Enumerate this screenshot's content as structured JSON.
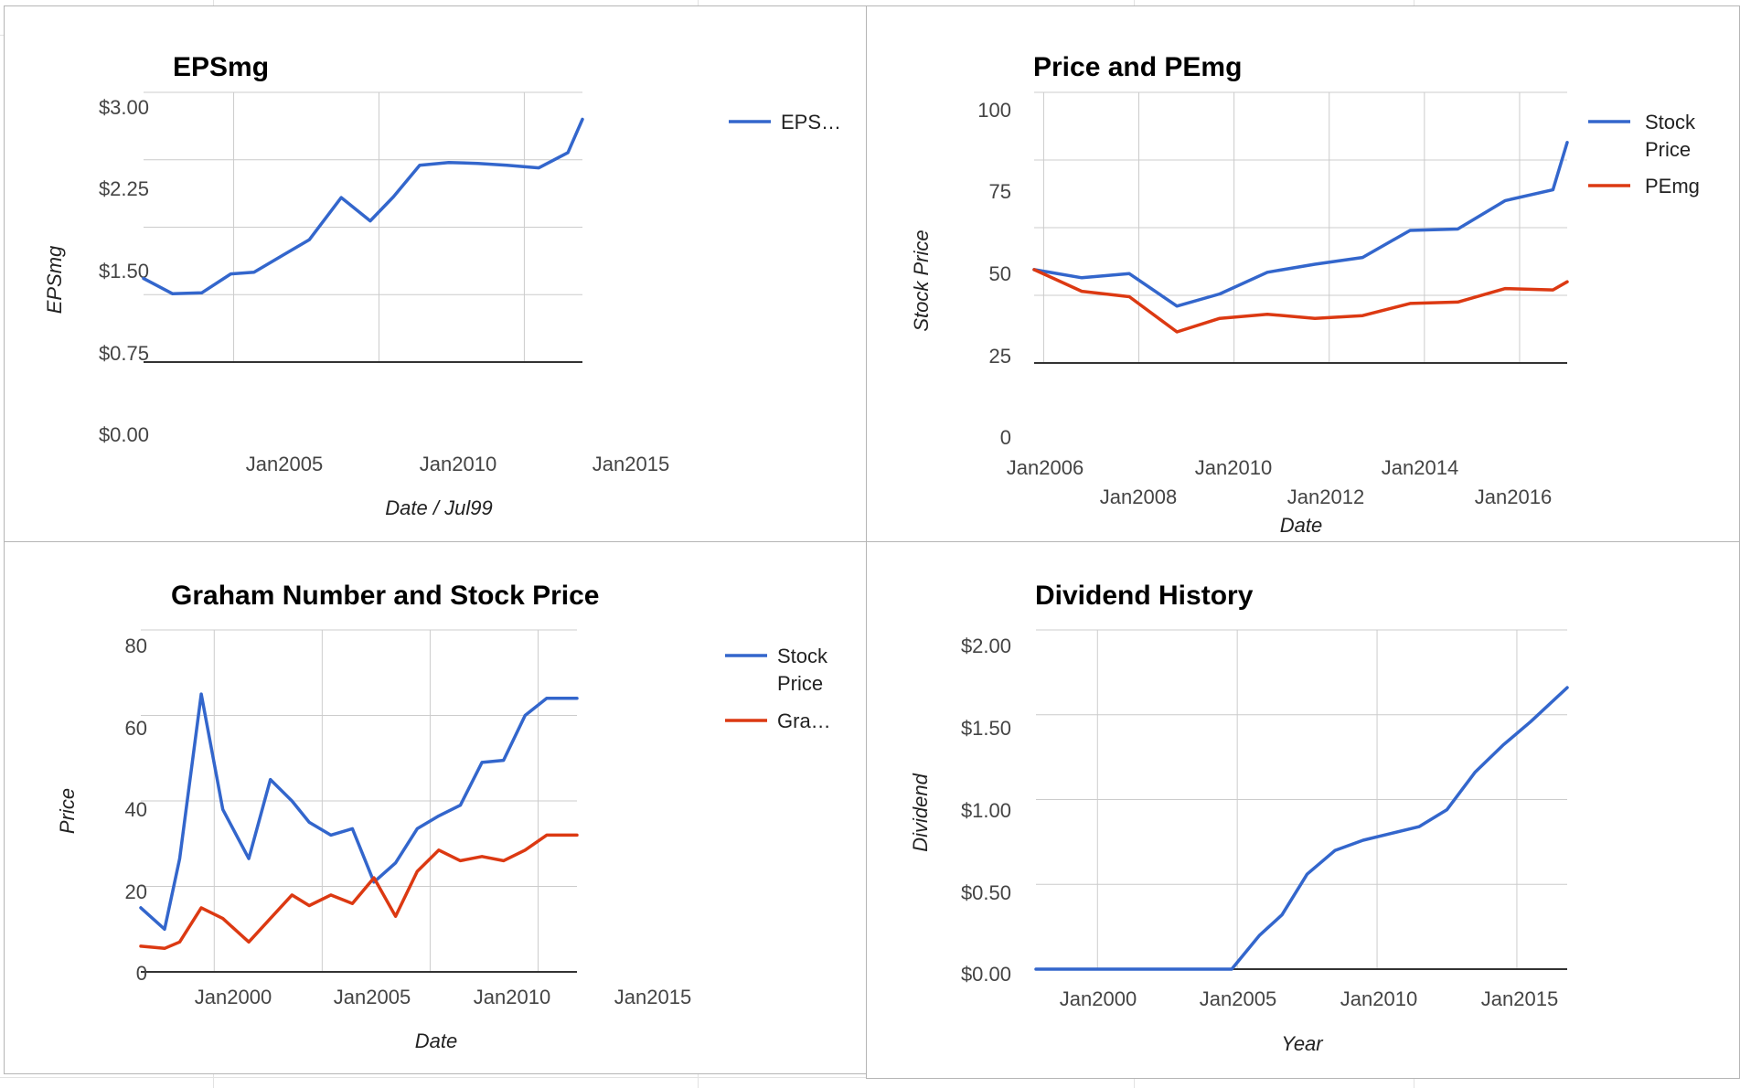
{
  "colors": {
    "blue": "#3366cc",
    "red": "#dc3912"
  },
  "chart_data": [
    {
      "id": "epsmg",
      "type": "line",
      "title": "EPSmg",
      "xlabel": "Date / Jul99",
      "ylabel": "EPSmg",
      "y_ticks": [
        "$0.00",
        "$0.75",
        "$1.50",
        "$2.25",
        "$3.00"
      ],
      "x_tick_labels": [
        "Jan2005",
        "Jan2010",
        "Jan2015"
      ],
      "legend": [
        "EPS…"
      ],
      "legend_position": "right",
      "grid": true,
      "ylim": [
        0,
        3
      ],
      "xlim": [
        2001.9,
        2017.0
      ],
      "x_ticks": [
        2005,
        2010,
        2015
      ],
      "series": [
        {
          "name": "EPS…",
          "color": "#3366cc",
          "x": [
            2001.9,
            2002.9,
            2003.9,
            2004.9,
            2005.7,
            2006.7,
            2007.6,
            2008.7,
            2009.7,
            2010.5,
            2011.4,
            2012.4,
            2013.4,
            2014.4,
            2015.5,
            2016.5,
            2017.0
          ],
          "y": [
            0.93,
            0.76,
            0.77,
            0.98,
            1.0,
            1.19,
            1.36,
            1.83,
            1.57,
            1.84,
            2.19,
            2.22,
            2.21,
            2.19,
            2.16,
            2.33,
            2.7
          ]
        }
      ]
    },
    {
      "id": "price-pemg",
      "type": "line",
      "title": "Price and PEmg",
      "xlabel": "Date",
      "ylabel": "Stock Price",
      "y_ticks": [
        "0",
        "25",
        "50",
        "75",
        "100"
      ],
      "x_tick_labels": [
        "Jan2006",
        "Jan2008",
        "Jan2010",
        "Jan2012",
        "Jan2014",
        "Jan2016"
      ],
      "legend": [
        "Stock Price",
        "PEmg"
      ],
      "legend_position": "right",
      "grid": true,
      "ylim": [
        0,
        100
      ],
      "xlim": [
        2005.8,
        2017.0
      ],
      "x_ticks": [
        2006,
        2008,
        2010,
        2012,
        2014,
        2016
      ],
      "series": [
        {
          "name": "Stock Price",
          "color": "#3366cc",
          "x": [
            2005.8,
            2006.8,
            2007.8,
            2008.8,
            2009.7,
            2010.7,
            2011.7,
            2012.7,
            2013.7,
            2014.7,
            2015.7,
            2016.7,
            2017.0
          ],
          "y": [
            34.5,
            31.5,
            33.0,
            21.0,
            25.5,
            33.5,
            36.5,
            39.0,
            49.0,
            49.5,
            60.0,
            64.0,
            81.5
          ]
        },
        {
          "name": "PEmg",
          "color": "#dc3912",
          "x": [
            2005.8,
            2006.8,
            2007.8,
            2008.8,
            2009.7,
            2010.7,
            2011.7,
            2012.7,
            2013.7,
            2014.7,
            2015.7,
            2016.7,
            2017.0
          ],
          "y": [
            34.5,
            26.5,
            24.5,
            11.5,
            16.5,
            18.0,
            16.5,
            17.5,
            22.0,
            22.5,
            27.5,
            27.0,
            30.0
          ]
        }
      ]
    },
    {
      "id": "graham",
      "type": "line",
      "title": "Graham Number and Stock Price",
      "xlabel": "Date",
      "ylabel": "Price",
      "y_ticks": [
        "0",
        "20",
        "40",
        "60",
        "80"
      ],
      "x_tick_labels": [
        "Jan2000",
        "Jan2005",
        "Jan2010",
        "Jan2015"
      ],
      "legend": [
        "Stock Price",
        "Gra…"
      ],
      "legend_position": "right",
      "grid": true,
      "ylim": [
        0,
        80
      ],
      "xlim": [
        1996.6,
        2016.8
      ],
      "x_ticks": [
        2000,
        2005,
        2010,
        2015
      ],
      "series": [
        {
          "name": "Stock Price",
          "color": "#3366cc",
          "x": [
            1996.6,
            1997.7,
            1998.4,
            1999.4,
            2000.4,
            2001.6,
            2002.6,
            2003.6,
            2004.4,
            2005.4,
            2006.4,
            2007.4,
            2008.4,
            2009.4,
            2010.4,
            2011.4,
            2012.4,
            2013.4,
            2014.4,
            2015.4,
            2016.8
          ],
          "y": [
            15,
            10,
            26.5,
            65,
            38,
            26.5,
            45,
            40,
            35,
            32,
            33.5,
            21,
            25.5,
            33.5,
            36.5,
            39,
            49,
            49.5,
            60,
            64,
            64
          ]
        },
        {
          "name": "Gra…",
          "color": "#dc3912",
          "x": [
            1996.6,
            1997.7,
            1998.4,
            1999.4,
            2000.4,
            2001.6,
            2002.6,
            2003.6,
            2004.4,
            2005.4,
            2006.4,
            2007.4,
            2008.4,
            2009.4,
            2010.4,
            2011.4,
            2012.4,
            2013.4,
            2014.4,
            2015.4,
            2016.8
          ],
          "y": [
            6,
            5.5,
            7,
            15,
            12.5,
            7,
            12.5,
            18,
            15.5,
            18,
            16,
            22,
            13,
            23.5,
            28.5,
            26,
            27,
            26,
            28.5,
            32,
            32
          ]
        }
      ]
    },
    {
      "id": "dividend",
      "type": "line",
      "title": "Dividend History",
      "xlabel": "Year",
      "ylabel": "Dividend",
      "y_ticks": [
        "$0.00",
        "$0.50",
        "$1.00",
        "$1.50",
        "$2.00"
      ],
      "x_tick_labels": [
        "Jan2000",
        "Jan2005",
        "Jan2010",
        "Jan2015"
      ],
      "legend": [],
      "grid": true,
      "ylim": [
        0,
        2
      ],
      "xlim": [
        1997.8,
        2016.8
      ],
      "x_ticks": [
        2000,
        2005,
        2010,
        2015
      ],
      "series": [
        {
          "name": "",
          "color": "#3366cc",
          "x": [
            1997.8,
            1998.8,
            1999.8,
            2000.8,
            2001.8,
            2002.8,
            2003.8,
            2004.8,
            2005.8,
            2006.6,
            2007.5,
            2008.5,
            2009.5,
            2010.5,
            2011.5,
            2012.5,
            2013.5,
            2014.5,
            2015.5,
            2016.8
          ],
          "y": [
            0,
            0,
            0,
            0,
            0,
            0,
            0,
            0,
            0.2,
            0.32,
            0.56,
            0.7,
            0.76,
            0.8,
            0.84,
            0.94,
            1.16,
            1.32,
            1.46,
            1.66
          ]
        }
      ]
    }
  ]
}
